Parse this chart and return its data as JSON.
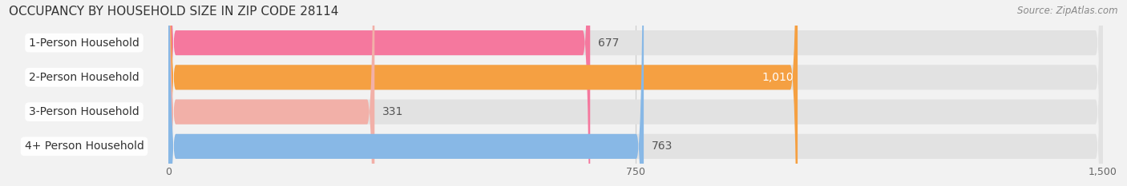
{
  "title": "OCCUPANCY BY HOUSEHOLD SIZE IN ZIP CODE 28114",
  "source": "Source: ZipAtlas.com",
  "categories": [
    "1-Person Household",
    "2-Person Household",
    "3-Person Household",
    "4+ Person Household"
  ],
  "values": [
    677,
    1010,
    331,
    763
  ],
  "bar_colors": [
    "#f5789e",
    "#f5a042",
    "#f2b0a8",
    "#88b8e6"
  ],
  "value_labels": [
    "677",
    "1,010",
    "331",
    "763"
  ],
  "value_label_colors": [
    "#555555",
    "#ffffff",
    "#555555",
    "#555555"
  ],
  "xlim_max": 1500,
  "xticks": [
    0,
    750,
    1500
  ],
  "background_color": "#f2f2f2",
  "bar_bg_color": "#e2e2e2",
  "title_fontsize": 11,
  "source_fontsize": 8.5,
  "tick_fontsize": 9,
  "label_fontsize": 10
}
